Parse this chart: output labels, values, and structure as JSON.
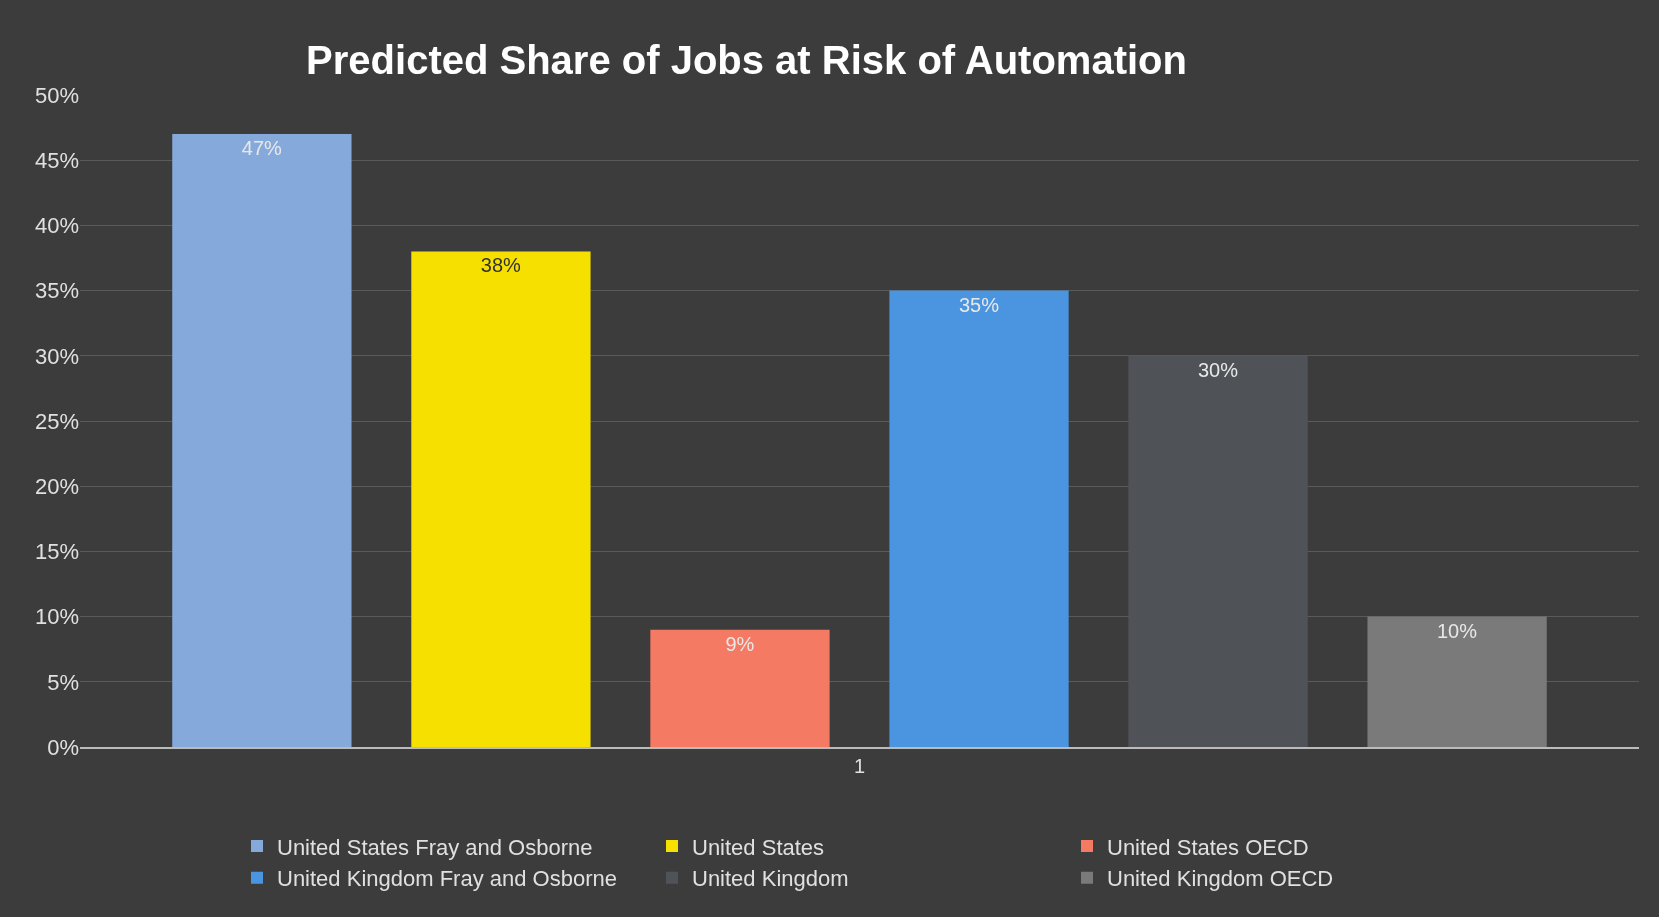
{
  "chart_data": {
    "type": "bar",
    "title": "Predicted Share of Jobs at Risk of Automation",
    "categories": [
      "1"
    ],
    "series": [
      {
        "name": "United States Fray and Osborne",
        "color": "#86a9dc",
        "values": [
          47
        ],
        "value_labels": [
          "47%"
        ]
      },
      {
        "name": "United States",
        "color": "#f5e000",
        "values": [
          38
        ],
        "value_labels": [
          "38%"
        ]
      },
      {
        "name": "United States OECD",
        "color": "#f47a64",
        "values": [
          9
        ],
        "value_labels": [
          "9%"
        ]
      },
      {
        "name": "United Kingdom Fray and Osborne",
        "color": "#4a94e0",
        "values": [
          35
        ],
        "value_labels": [
          "35%"
        ]
      },
      {
        "name": "United Kingdom",
        "color": "#4f5358",
        "values": [
          30
        ],
        "value_labels": [
          "30%"
        ]
      },
      {
        "name": "United Kingdom OECD",
        "color": "#7a7a7a",
        "values": [
          10
        ],
        "value_labels": [
          "10%"
        ]
      }
    ],
    "ylim": [
      0,
      50
    ],
    "yticks": [
      {
        "value": 0,
        "label": "0%"
      },
      {
        "value": 5,
        "label": "5%"
      },
      {
        "value": 10,
        "label": "10%"
      },
      {
        "value": 15,
        "label": "15%"
      },
      {
        "value": 20,
        "label": "20%"
      },
      {
        "value": 25,
        "label": "25%"
      },
      {
        "value": 30,
        "label": "30%"
      },
      {
        "value": 35,
        "label": "35%"
      },
      {
        "value": 40,
        "label": "40%"
      },
      {
        "value": 45,
        "label": "45%"
      },
      {
        "value": 50,
        "label": "50%"
      }
    ],
    "grid": "y",
    "legend": "bottom"
  }
}
